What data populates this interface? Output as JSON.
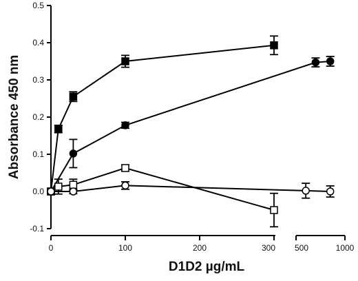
{
  "chart_data": {
    "type": "line",
    "title": "",
    "xlabel": "D1D2  µg/mL",
    "ylabel": "Absorbance 450 nm",
    "x_axis": {
      "broken": true,
      "segment1": {
        "range": [
          0,
          300
        ],
        "ticks": [
          0,
          100,
          200,
          300
        ]
      },
      "segment2": {
        "range": [
          500,
          1000
        ],
        "ticks": [
          500,
          1000
        ]
      }
    },
    "y_axis": {
      "range": [
        -0.1,
        0.5
      ],
      "ticks": [
        -0.1,
        0.0,
        0.1,
        0.2,
        0.3,
        0.4,
        0.5
      ],
      "tick_labels": [
        "-0.1",
        "0.0",
        "0.1",
        "0.2",
        "0.3",
        "0.4",
        "0.5"
      ]
    },
    "x_tick_labels": [
      "0",
      "100",
      "200",
      "300",
      "500",
      "1000"
    ],
    "grid": false,
    "series": [
      {
        "marker": "filled-square",
        "points": [
          {
            "x": 0,
            "y": 0.0,
            "err": 0.005
          },
          {
            "x": 10,
            "y": 0.168,
            "err": 0.01
          },
          {
            "x": 30,
            "y": 0.255,
            "err": 0.013
          },
          {
            "x": 100,
            "y": 0.35,
            "err": 0.016
          },
          {
            "x": 300,
            "y": 0.393,
            "err": 0.025
          }
        ]
      },
      {
        "marker": "filled-circle",
        "points": [
          {
            "x": 0,
            "y": 0.0,
            "err": 0.005
          },
          {
            "x": 30,
            "y": 0.102,
            "err": 0.038
          },
          {
            "x": 100,
            "y": 0.178,
            "err": 0.008
          },
          {
            "x": 700,
            "y": 0.347,
            "err": 0.012
          },
          {
            "x": 850,
            "y": 0.35,
            "err": 0.013
          }
        ]
      },
      {
        "marker": "open-square",
        "points": [
          {
            "x": 0,
            "y": 0.0,
            "err": 0.005
          },
          {
            "x": 10,
            "y": 0.013,
            "err": 0.02
          },
          {
            "x": 30,
            "y": 0.018,
            "err": 0.015
          },
          {
            "x": 100,
            "y": 0.063,
            "err": 0.008
          },
          {
            "x": 300,
            "y": -0.05,
            "err": 0.045
          }
        ]
      },
      {
        "marker": "open-circle",
        "points": [
          {
            "x": 0,
            "y": 0.0,
            "err": 0.005
          },
          {
            "x": 30,
            "y": 0.0,
            "err": 0.006
          },
          {
            "x": 100,
            "y": 0.016,
            "err": 0.01
          },
          {
            "x": 600,
            "y": 0.002,
            "err": 0.02
          },
          {
            "x": 850,
            "y": 0.0,
            "err": 0.015
          }
        ]
      }
    ]
  }
}
